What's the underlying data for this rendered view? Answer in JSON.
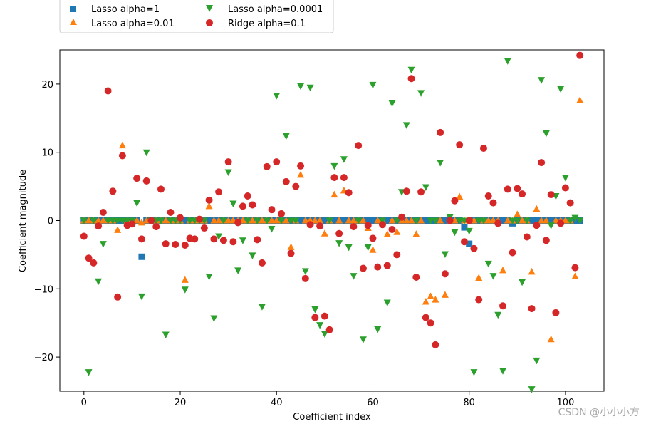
{
  "chart_data": {
    "type": "scatter",
    "title": "",
    "xlabel": "Coefficient index",
    "ylabel": "Coefficient magnitude",
    "xlim": [
      -5,
      108
    ],
    "ylim": [
      -25,
      25
    ],
    "xticks": [
      0,
      20,
      40,
      60,
      80,
      100
    ],
    "yticks": [
      -20,
      -10,
      0,
      10,
      20
    ],
    "ytick_labels": [
      "−20",
      "−10",
      "0",
      "10",
      "20"
    ],
    "grid": false,
    "legend_placement": "above-top-left",
    "series": [
      {
        "name": "Lasso alpha=1",
        "marker": "square",
        "color": "#1f77b4",
        "note": "all 104 coefficients are 0 except index 12 (-5.3), index 79 (-1.0), index 80 (-3.4), index 89 (-0.4)",
        "x": [
          0,
          1,
          2,
          3,
          4,
          5,
          6,
          7,
          8,
          9,
          10,
          11,
          12,
          13,
          14,
          15,
          16,
          17,
          18,
          19,
          20,
          21,
          22,
          23,
          24,
          25,
          26,
          27,
          28,
          29,
          30,
          31,
          32,
          33,
          34,
          35,
          36,
          37,
          38,
          39,
          40,
          41,
          42,
          43,
          44,
          45,
          46,
          47,
          48,
          49,
          50,
          51,
          52,
          53,
          54,
          55,
          56,
          57,
          58,
          59,
          60,
          61,
          62,
          63,
          64,
          65,
          66,
          67,
          68,
          69,
          70,
          71,
          72,
          73,
          74,
          75,
          76,
          77,
          78,
          79,
          80,
          81,
          82,
          83,
          84,
          85,
          86,
          87,
          88,
          89,
          90,
          91,
          92,
          93,
          94,
          95,
          96,
          97,
          98,
          99,
          100,
          101,
          102,
          103
        ],
        "values": [
          0,
          0,
          0,
          0,
          0,
          0,
          0,
          0,
          0,
          0,
          0,
          0,
          -5.3,
          0,
          0,
          0,
          0,
          0,
          0,
          0,
          0,
          0,
          0,
          0,
          0,
          0,
          0,
          0,
          0,
          0,
          0,
          0,
          0,
          0,
          0,
          0,
          0,
          0,
          0,
          0,
          0,
          0,
          0,
          0,
          0,
          0,
          0,
          0,
          0,
          0,
          0,
          0,
          0,
          0,
          0,
          0,
          0,
          0,
          0,
          0,
          0,
          0,
          0,
          0,
          0,
          0,
          0,
          0,
          0,
          0,
          0,
          0,
          0,
          0,
          0,
          0,
          0,
          0,
          0,
          -1.0,
          -3.4,
          0,
          0,
          0,
          0,
          0,
          0,
          0,
          0,
          -0.4,
          0,
          0,
          0,
          0,
          0,
          0,
          0,
          0,
          0,
          0,
          0,
          0,
          0,
          0
        ]
      },
      {
        "name": "Lasso alpha=0.01",
        "marker": "triangle-up",
        "color": "#ff7f0e",
        "x": [
          0,
          1,
          2,
          3,
          4,
          5,
          6,
          7,
          8,
          9,
          10,
          11,
          12,
          13,
          14,
          15,
          16,
          17,
          18,
          19,
          20,
          21,
          22,
          23,
          24,
          25,
          26,
          27,
          28,
          29,
          30,
          31,
          32,
          33,
          34,
          35,
          36,
          37,
          38,
          39,
          40,
          41,
          42,
          43,
          44,
          45,
          46,
          47,
          48,
          49,
          50,
          51,
          52,
          53,
          54,
          55,
          56,
          57,
          58,
          59,
          60,
          61,
          62,
          63,
          64,
          65,
          66,
          67,
          68,
          69,
          70,
          71,
          72,
          73,
          74,
          75,
          76,
          77,
          78,
          79,
          80,
          81,
          82,
          83,
          84,
          85,
          86,
          87,
          88,
          89,
          90,
          91,
          92,
          93,
          94,
          95,
          96,
          97,
          98,
          99,
          100,
          101,
          102,
          103
        ],
        "values": [
          0,
          0,
          0,
          0,
          0,
          0,
          0,
          -1.4,
          11,
          0,
          0,
          0,
          -0.3,
          0,
          0,
          0,
          0,
          0,
          0,
          0,
          0,
          -8.7,
          0,
          0,
          0,
          0,
          2.1,
          0,
          0,
          0,
          0,
          0,
          0,
          0,
          0,
          0,
          0,
          0,
          0,
          0,
          0,
          0,
          0,
          -3.9,
          0,
          6.7,
          0,
          0,
          0,
          0,
          -1.9,
          0,
          3.8,
          0,
          4.4,
          0,
          0,
          0,
          0,
          -1.1,
          -4.3,
          0,
          0,
          -2.0,
          0,
          -1.7,
          0,
          0,
          0,
          -2.0,
          0,
          -11.9,
          -11.1,
          -11.6,
          0,
          -10.9,
          0,
          0,
          3.5,
          0,
          0,
          0,
          -8.4,
          0,
          0,
          0,
          0,
          -7.3,
          0,
          0,
          0.9,
          0,
          0,
          -7.5,
          1.7,
          0,
          0,
          -17.4,
          0,
          0,
          0,
          0,
          -8.2,
          17.6
        ]
      },
      {
        "name": "Lasso alpha=0.0001",
        "marker": "triangle-down",
        "color": "#2ca02c",
        "x": [
          0,
          1,
          2,
          3,
          4,
          5,
          6,
          7,
          8,
          9,
          10,
          11,
          12,
          13,
          14,
          15,
          16,
          17,
          18,
          19,
          20,
          21,
          22,
          23,
          24,
          25,
          26,
          27,
          28,
          29,
          30,
          31,
          32,
          33,
          34,
          35,
          36,
          37,
          38,
          39,
          40,
          41,
          42,
          43,
          44,
          45,
          46,
          47,
          48,
          49,
          50,
          51,
          52,
          53,
          54,
          55,
          56,
          57,
          58,
          59,
          60,
          61,
          62,
          63,
          64,
          65,
          66,
          67,
          68,
          69,
          70,
          71,
          72,
          73,
          74,
          75,
          76,
          77,
          78,
          79,
          80,
          81,
          82,
          83,
          84,
          85,
          86,
          87,
          88,
          89,
          90,
          91,
          92,
          93,
          94,
          95,
          96,
          97,
          98,
          99,
          100,
          101,
          102,
          103
        ],
        "values": [
          0,
          -22.2,
          0,
          -8.9,
          -3.4,
          0,
          0,
          0,
          0,
          0,
          0,
          2.6,
          -11.1,
          10.0,
          0,
          0,
          0,
          -16.7,
          0,
          0,
          0,
          -10.1,
          0,
          0,
          0,
          0,
          -8.2,
          -14.3,
          -2.3,
          0,
          7.1,
          2.5,
          -7.3,
          -2.9,
          0,
          -5.1,
          0,
          -12.6,
          0,
          -1.2,
          18.3,
          0,
          12.4,
          0,
          0,
          19.7,
          -7.4,
          19.5,
          -13.0,
          -15.3,
          -16.6,
          0,
          8.0,
          -3.3,
          9.0,
          -3.9,
          -8.1,
          0,
          -17.4,
          -3.9,
          19.9,
          -15.9,
          0,
          -12.0,
          17.2,
          0,
          4.2,
          14.0,
          22.1,
          0,
          18.7,
          4.9,
          0,
          0,
          8.5,
          -4.9,
          0.5,
          -1.7,
          0,
          0,
          -1.5,
          -22.2,
          0,
          0,
          -6.3,
          -8.1,
          -13.8,
          -22.0,
          23.4,
          0,
          0,
          -9.0,
          0,
          -24.7,
          -20.5,
          20.6,
          12.8,
          -0.7,
          3.6,
          19.3,
          6.3,
          0,
          0.4,
          0
        ]
      },
      {
        "name": "Ridge alpha=0.1",
        "marker": "circle",
        "color": "#d62728",
        "x": [
          0,
          1,
          2,
          3,
          4,
          5,
          6,
          7,
          8,
          9,
          10,
          11,
          12,
          13,
          14,
          15,
          16,
          17,
          18,
          19,
          20,
          21,
          22,
          23,
          24,
          25,
          26,
          27,
          28,
          29,
          30,
          31,
          32,
          33,
          34,
          35,
          36,
          37,
          38,
          39,
          40,
          41,
          42,
          43,
          44,
          45,
          46,
          47,
          48,
          49,
          50,
          51,
          52,
          53,
          54,
          55,
          56,
          57,
          58,
          59,
          60,
          61,
          62,
          63,
          64,
          65,
          66,
          67,
          68,
          69,
          70,
          71,
          72,
          73,
          74,
          75,
          76,
          77,
          78,
          79,
          80,
          81,
          82,
          83,
          84,
          85,
          86,
          87,
          88,
          89,
          90,
          91,
          92,
          93,
          94,
          95,
          96,
          97,
          98,
          99,
          100,
          101,
          102,
          103
        ],
        "values": [
          -2.3,
          -5.5,
          -6.2,
          -0.8,
          1.2,
          19.0,
          4.3,
          -11.2,
          9.5,
          -0.7,
          -0.5,
          6.2,
          -2.7,
          5.8,
          0,
          -0.9,
          4.6,
          -3.4,
          1.2,
          -3.5,
          0.4,
          -3.6,
          -2.6,
          -2.7,
          0.2,
          -1.1,
          3.0,
          -2.7,
          4.2,
          -2.9,
          8.6,
          -3.1,
          -0.3,
          2.1,
          3.6,
          2.3,
          -2.8,
          -6.2,
          7.9,
          1.6,
          8.6,
          1.0,
          5.7,
          -4.8,
          5.0,
          8.0,
          -8.5,
          -0.6,
          -14.2,
          -0.8,
          -14.0,
          -16.0,
          6.3,
          -1.9,
          6.3,
          4.1,
          -0.9,
          11.0,
          -7.0,
          -0.7,
          -2.6,
          -6.8,
          -0.6,
          -6.6,
          -1.3,
          -5.0,
          0.5,
          4.3,
          20.8,
          -8.3,
          4.2,
          -14.2,
          -15.0,
          -18.2,
          12.9,
          -7.8,
          0,
          2.9,
          11.1,
          -3.1,
          0,
          -4.1,
          -11.6,
          10.6,
          3.6,
          2.6,
          -0.4,
          -12.5,
          4.6,
          -4.7,
          4.7,
          3.9,
          -2.4,
          -12.9,
          -0.7,
          8.5,
          -2.9,
          3.8,
          -13.5,
          -0.4,
          4.8,
          2.6,
          -6.9,
          24.2
        ]
      }
    ]
  },
  "watermark": "CSDN @小小小方"
}
